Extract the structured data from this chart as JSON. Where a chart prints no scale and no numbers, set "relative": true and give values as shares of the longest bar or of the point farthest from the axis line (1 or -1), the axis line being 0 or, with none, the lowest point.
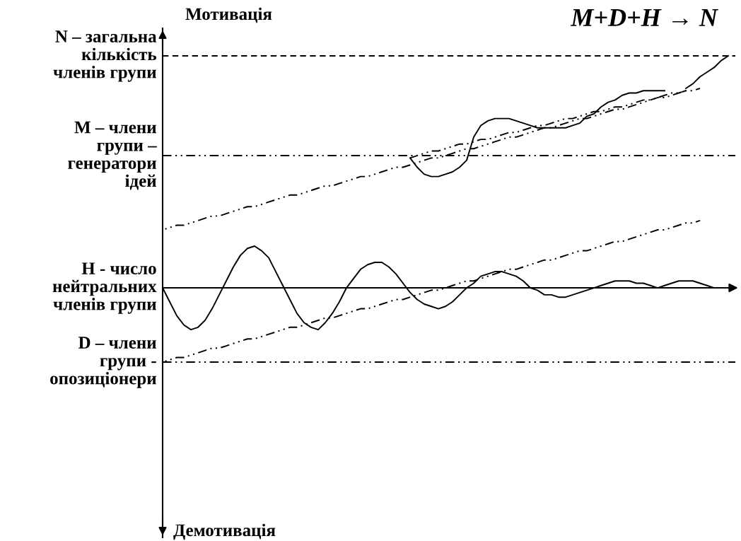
{
  "chart_data": {
    "type": "line",
    "relative": true,
    "title": "M+D+H → N",
    "annotations": [
      "Мотивація",
      "Демотивація"
    ],
    "categories": [
      null,
      null,
      null,
      null,
      null,
      null,
      null,
      null,
      null,
      null,
      null,
      null,
      null,
      null,
      null,
      null,
      null,
      null,
      null,
      null,
      null,
      null,
      null,
      null,
      null,
      null,
      null,
      null,
      null,
      null,
      null,
      null,
      null,
      null,
      null,
      null,
      null,
      null,
      null,
      null,
      null,
      null,
      null,
      null,
      null,
      null,
      null,
      null,
      null,
      null,
      null,
      null,
      null,
      null,
      null,
      null,
      null,
      null,
      null,
      null,
      null,
      null,
      null,
      null,
      null,
      null,
      null,
      null,
      null,
      null,
      null,
      null,
      null,
      null,
      null,
      null,
      null,
      null,
      null,
      null,
      null
    ],
    "series": [
      {
        "color": "#000000",
        "line_style": "solid",
        "values": [
          0,
          -0.06,
          -0.12,
          -0.16,
          -0.18,
          -0.17,
          -0.14,
          -0.09,
          -0.03,
          0.03,
          0.09,
          0.14,
          0.17,
          0.18,
          0.16,
          0.13,
          0.07,
          0.01,
          -0.05,
          -0.11,
          -0.15,
          -0.17,
          -0.18,
          -0.15,
          -0.11,
          -0.06,
          0.0,
          0.04,
          0.08,
          0.1,
          0.11,
          0.11,
          0.09,
          0.06,
          0.02,
          -0.02,
          -0.05,
          -0.07,
          -0.08,
          -0.09,
          -0.08,
          -0.06,
          -0.03,
          0.0,
          0.02,
          0.05,
          0.06,
          0.07,
          0.07,
          0.06,
          0.05,
          0.03,
          0.0,
          -0.01,
          -0.03,
          -0.03,
          -0.04,
          -0.04,
          -0.03,
          -0.02,
          -0.01,
          0.0,
          0.01,
          0.02,
          0.03,
          0.03,
          0.03,
          0.02,
          0.02,
          0.01,
          0.0,
          0.01,
          0.02,
          0.03,
          0.03,
          0.03,
          0.02,
          0.01,
          0.0,
          null,
          null
        ]
      },
      {
        "color": "#000000",
        "line_style": "solid",
        "values": [
          null,
          null,
          null,
          null,
          null,
          null,
          null,
          null,
          null,
          null,
          null,
          null,
          null,
          null,
          null,
          null,
          null,
          null,
          null,
          null,
          null,
          null,
          null,
          null,
          null,
          null,
          null,
          null,
          null,
          null,
          null,
          null,
          null,
          null,
          null,
          0.56,
          0.52,
          0.49,
          0.48,
          0.48,
          0.49,
          0.5,
          0.52,
          0.55,
          0.65,
          0.7,
          0.72,
          0.73,
          0.73,
          0.73,
          0.72,
          0.71,
          0.7,
          0.69,
          0.69,
          0.69,
          0.69,
          0.69,
          0.7,
          0.71,
          0.74,
          0.75,
          0.78,
          0.8,
          0.81,
          0.83,
          0.84,
          0.84,
          0.85,
          0.85,
          0.85,
          0.85,
          null,
          null,
          0.86,
          0.88,
          0.91,
          0.93,
          0.95,
          0.98,
          1.0
        ]
      },
      {
        "color": "#000000",
        "line_style": "dashdotdot",
        "values": [
          0.25,
          0.26,
          0.27,
          0.27,
          0.28,
          0.29,
          0.3,
          0.31,
          0.31,
          0.32,
          0.33,
          0.34,
          0.35,
          0.35,
          0.36,
          0.37,
          0.38,
          0.39,
          0.4,
          0.4,
          0.41,
          0.42,
          0.43,
          0.44,
          0.44,
          0.45,
          0.46,
          0.47,
          0.48,
          0.48,
          0.49,
          0.5,
          0.51,
          0.52,
          0.52,
          0.53,
          0.54,
          0.55,
          0.56,
          0.56,
          0.57,
          0.58,
          0.59,
          0.6,
          0.6,
          0.61,
          0.62,
          0.63,
          0.64,
          0.65,
          0.65,
          0.66,
          0.67,
          0.68,
          0.69,
          0.69,
          0.7,
          0.71,
          0.72,
          0.73,
          0.73,
          0.74,
          0.75,
          0.76,
          0.77,
          0.77,
          0.78,
          0.79,
          0.8,
          0.81,
          0.82,
          0.82,
          0.83,
          0.84,
          0.85,
          0.85,
          0.86,
          null,
          null,
          null,
          null
        ]
      },
      {
        "color": "#000000",
        "line_style": "dashdotdot",
        "values": [
          null,
          null,
          null,
          null,
          null,
          null,
          null,
          null,
          null,
          null,
          null,
          null,
          null,
          null,
          null,
          null,
          null,
          null,
          null,
          null,
          null,
          null,
          null,
          null,
          null,
          null,
          null,
          null,
          null,
          null,
          null,
          null,
          null,
          null,
          null,
          0.56,
          0.57,
          0.58,
          0.59,
          0.59,
          0.6,
          0.61,
          0.62,
          0.62,
          0.63,
          0.64,
          0.64,
          0.65,
          0.66,
          0.67,
          0.67,
          0.68,
          0.69,
          0.7,
          0.7,
          0.71,
          0.72,
          0.73,
          0.73,
          0.74,
          0.75,
          0.76,
          0.76,
          0.77,
          0.78,
          0.78,
          0.79,
          0.8,
          0.81,
          0.81,
          0.82,
          0.83,
          0.84,
          0.84,
          0.85,
          null,
          null,
          null,
          null,
          null,
          null
        ]
      },
      {
        "color": "#000000",
        "line_style": "dashdotdot",
        "values": [
          -0.32,
          -0.31,
          -0.3,
          -0.3,
          -0.29,
          -0.28,
          -0.27,
          -0.26,
          -0.26,
          -0.25,
          -0.24,
          -0.23,
          -0.22,
          -0.22,
          -0.21,
          -0.2,
          -0.19,
          -0.18,
          -0.17,
          -0.17,
          -0.16,
          -0.15,
          -0.14,
          -0.13,
          -0.13,
          -0.12,
          -0.11,
          -0.1,
          -0.09,
          -0.09,
          -0.08,
          -0.07,
          -0.06,
          -0.05,
          -0.05,
          -0.04,
          -0.03,
          -0.02,
          -0.01,
          -0.01,
          0.0,
          0.01,
          0.02,
          0.03,
          0.03,
          0.04,
          0.05,
          0.06,
          0.07,
          0.08,
          0.08,
          0.09,
          0.1,
          0.11,
          0.12,
          0.12,
          0.13,
          0.14,
          0.15,
          0.16,
          0.16,
          0.17,
          0.18,
          0.19,
          0.2,
          0.2,
          0.21,
          0.22,
          0.23,
          0.24,
          0.25,
          0.25,
          0.26,
          0.27,
          0.28,
          0.28,
          0.29,
          null,
          null,
          null,
          null
        ]
      }
    ],
    "ref_lines": [
      {
        "axis": "y",
        "value": 1.0,
        "label": "N – загальна\nкількість\nчленів групи",
        "color": "#000000",
        "line_style": "dashed"
      },
      {
        "axis": "y",
        "value": 0.57,
        "label": "M – члени\nгрупи –\nгенератори\nідей",
        "color": "#000000",
        "line_style": "dashdotdot"
      },
      {
        "axis": "y",
        "value": 0,
        "label": "H - число\nнейтральних\nчленів групи",
        "color": "#000000",
        "line_style": "solid"
      },
      {
        "axis": "y",
        "value": -0.32,
        "label": "D – члени\nгрупи -\nопозиціонери",
        "color": "#000000",
        "line_style": "dashdotdot"
      }
    ]
  }
}
